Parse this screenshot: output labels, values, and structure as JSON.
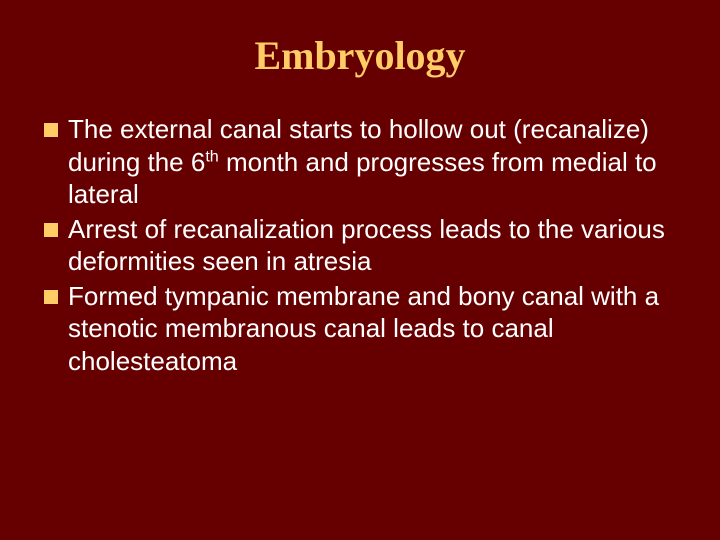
{
  "slide": {
    "title": "Embryology",
    "bullets": [
      {
        "text_html": "The external canal starts to hollow out (recanalize) during the 6<span class=\"sup\">th</span> month and progresses from medial to lateral"
      },
      {
        "text_html": "Arrest of recanalization process leads to the various deformities seen in atresia"
      },
      {
        "text_html": "Formed tympanic membrane and bony canal with a stenotic membranous canal leads to canal cholesteatoma"
      }
    ]
  },
  "style": {
    "background_color": "#660000",
    "title_color": "#ffcc66",
    "title_font": "Georgia, serif",
    "title_fontsize": 40,
    "title_weight": "bold",
    "body_color": "#ffffff",
    "body_font": "Verdana, sans-serif",
    "body_fontsize": 26,
    "bullet_marker_color": "#ffcc66",
    "bullet_marker_size": 14,
    "bullet_marker_shape": "square"
  }
}
